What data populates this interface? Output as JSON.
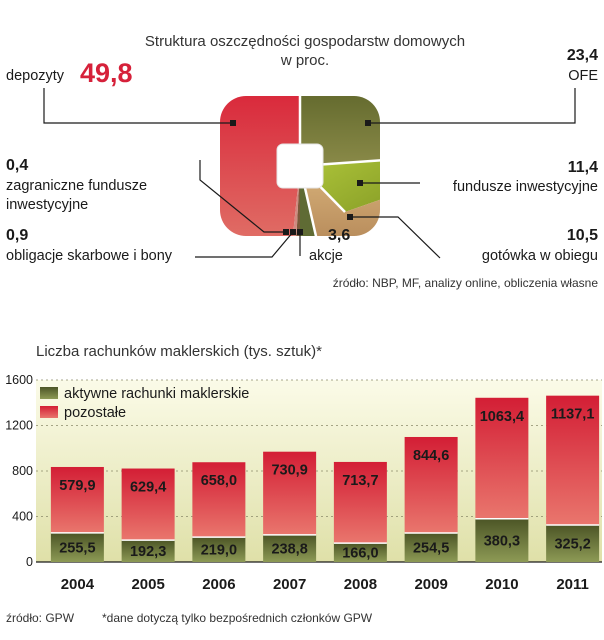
{
  "pie": {
    "title_line1": "Struktura  oszczędności gospodarstw domowych",
    "title_line2": "w proc.",
    "source": "źródło: NBP, MF, analizy online, obliczenia własne",
    "segments": [
      {
        "label": "depozyty",
        "value": "49,8",
        "color": "#d8323f"
      },
      {
        "label": "OFE",
        "value": "23,4",
        "color": "#6b6b2e"
      },
      {
        "label": "fundusze inwestycyjne",
        "value": "11,4",
        "color": "#9bb030"
      },
      {
        "label": "gotówka w obiegu",
        "value": "10,5",
        "color": "#c9a472"
      },
      {
        "label": "akcje",
        "value": "3,6",
        "color": "#5f6b34"
      },
      {
        "label": "obligacje skarbowe i bony",
        "value": "0,9",
        "color": "#7a5a3a"
      },
      {
        "label_line1": "zagraniczne fundusze",
        "label_line2": "inwestycyjne",
        "value": "0,4",
        "color": "#d08a80"
      }
    ]
  },
  "chart_data": {
    "type": "bar",
    "title": "Liczba rachunków maklerskich (tys. sztuk)*",
    "categories": [
      "2004",
      "2005",
      "2006",
      "2007",
      "2008",
      "2009",
      "2010",
      "2011"
    ],
    "series": [
      {
        "name": "aktywne rachunki maklerskie",
        "values": [
          255.5,
          192.3,
          219.0,
          238.8,
          166.0,
          254.5,
          380.3,
          325.2
        ],
        "labels": [
          "255,5",
          "192,3",
          "219,0",
          "238,8",
          "166,0",
          "254,5",
          "380,3",
          "325,2"
        ],
        "color": "#4f5a2a"
      },
      {
        "name": "pozostałe",
        "values": [
          579.9,
          629.4,
          658.0,
          730.9,
          713.7,
          844.6,
          1063.4,
          1137.1
        ],
        "labels": [
          "579,9",
          "629,4",
          "658,0",
          "730,9",
          "713,7",
          "844,6",
          "1063,4",
          "1137,1"
        ],
        "color": "#d8323f"
      }
    ],
    "ylim": [
      0,
      1600
    ],
    "yticks": [
      "0",
      "400",
      "800",
      "1200",
      "1600"
    ],
    "stacked": true,
    "legend": "top-left"
  },
  "footer": {
    "source": "źródło: GPW",
    "note": "*dane dotyczą tylko bezpośrednich członków GPW"
  }
}
